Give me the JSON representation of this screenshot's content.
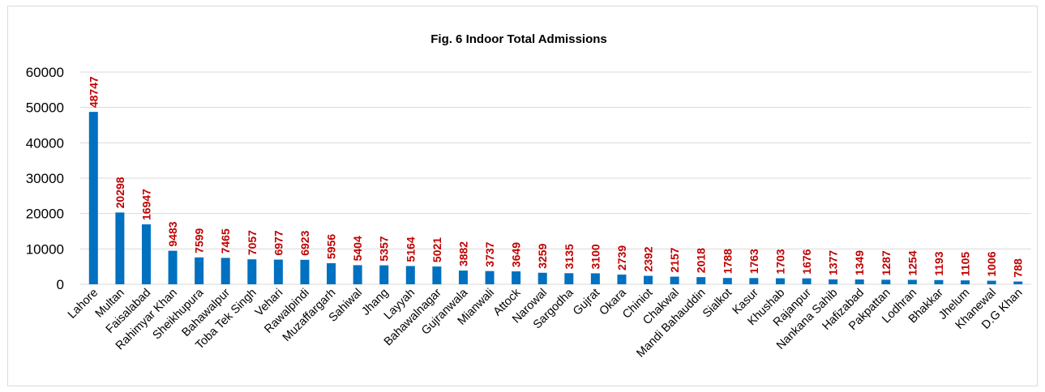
{
  "chart_data": {
    "type": "bar",
    "title": "Fig. 6 Indoor Total Admissions",
    "xlabel": "",
    "ylabel": "",
    "ylim": [
      0,
      60000
    ],
    "yticks": [
      0,
      10000,
      20000,
      30000,
      40000,
      50000,
      60000
    ],
    "grid": true,
    "legend": "none",
    "colors": {
      "bar": "#0070c0",
      "label": "#c00000"
    },
    "categories": [
      "Lahore",
      "Multan",
      "Faisalabad",
      "Rahimyar Khan",
      "Sheikhupura",
      "Bahawalpur",
      "Toba Tek Singh",
      "Vehari",
      "Rawalpindi",
      "Muzaffargarh",
      "Sahiwal",
      "Jhang",
      "Layyah",
      "Bahawalnagar",
      "Gujranwala",
      "Mianwali",
      "Attock",
      "Narowal",
      "Sargodha",
      "Gujrat",
      "Okara",
      "Chiniot",
      "Chakwal",
      "Mandi Bahauddin",
      "Sialkot",
      "Kasur",
      "Khushab",
      "Rajanpur",
      "Nankana Sahib",
      "Hafizabad",
      "Pakpattan",
      "Lodhran",
      "Bhakkar",
      "Jhelum",
      "Khanewal",
      "D.G Khan"
    ],
    "values": [
      48747,
      20298,
      16947,
      9483,
      7599,
      7465,
      7057,
      6977,
      6923,
      5956,
      5404,
      5357,
      5164,
      5021,
      3882,
      3737,
      3649,
      3259,
      3135,
      3100,
      2739,
      2392,
      2157,
      2018,
      1788,
      1763,
      1703,
      1676,
      1377,
      1349,
      1287,
      1254,
      1193,
      1105,
      1006,
      788
    ]
  }
}
